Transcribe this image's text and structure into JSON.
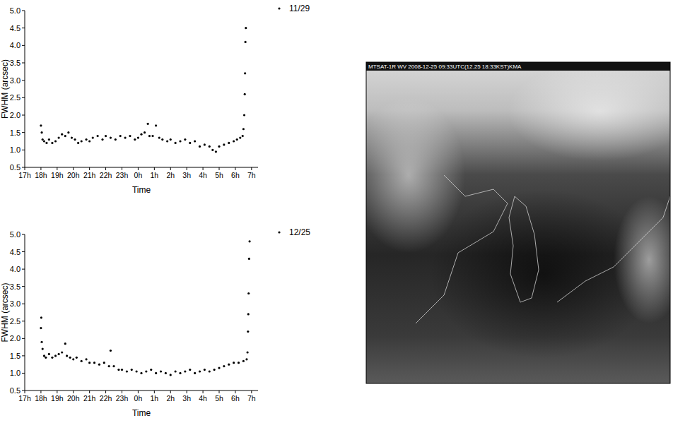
{
  "chart_data": [
    {
      "type": "scatter",
      "x_label": "Time",
      "y_label": "FWHM (arcsec)",
      "marker": "circle",
      "grid": false,
      "legend": "top right",
      "xlim": [
        0,
        14.4
      ],
      "xticks": [
        {
          "value": 0,
          "label": "17h"
        },
        {
          "value": 1,
          "label": "18h"
        },
        {
          "value": 2,
          "label": "19h"
        },
        {
          "value": 3,
          "label": "20h"
        },
        {
          "value": 4,
          "label": "21h"
        },
        {
          "value": 5,
          "label": "22h"
        },
        {
          "value": 6,
          "label": "23h"
        },
        {
          "value": 7,
          "label": "0h"
        },
        {
          "value": 8,
          "label": "1h"
        },
        {
          "value": 9,
          "label": "2h"
        },
        {
          "value": 10,
          "label": "3h"
        },
        {
          "value": 11,
          "label": "4h"
        },
        {
          "value": 12,
          "label": "5h"
        },
        {
          "value": 13,
          "label": "6h"
        },
        {
          "value": 14,
          "label": "7h"
        }
      ],
      "ylim": [
        0.5,
        5.0
      ],
      "yticks": [
        0.5,
        {
          "value": 1,
          "label": "1.0"
        },
        1.5,
        {
          "value": 2,
          "label": "2.0"
        },
        2.5,
        {
          "value": 3,
          "label": "3.0"
        },
        3.5,
        {
          "value": 4,
          "label": "4.0"
        },
        4.5,
        {
          "value": 5,
          "label": "5.0"
        }
      ],
      "x": [
        1.0,
        1.05,
        1.1,
        1.2,
        1.35,
        1.5,
        1.7,
        1.9,
        2.1,
        2.3,
        2.5,
        2.7,
        2.9,
        3.1,
        3.3,
        3.5,
        3.8,
        4.0,
        4.2,
        4.5,
        4.8,
        5.0,
        5.3,
        5.6,
        5.9,
        6.2,
        6.5,
        6.8,
        7.0,
        7.2,
        7.4,
        7.6,
        7.7,
        7.9,
        8.1,
        8.3,
        8.5,
        8.8,
        9.0,
        9.3,
        9.6,
        9.9,
        10.2,
        10.5,
        10.8,
        11.1,
        11.4,
        11.6,
        11.8,
        12.0,
        12.3,
        12.6,
        12.9,
        13.1,
        13.3,
        13.45,
        13.5,
        13.55,
        13.58,
        13.6,
        13.62,
        13.65
      ],
      "series": [
        {
          "name": "11/29",
          "color": "#000000",
          "values": [
            1.7,
            1.5,
            1.3,
            1.25,
            1.2,
            1.3,
            1.2,
            1.25,
            1.35,
            1.45,
            1.4,
            1.5,
            1.35,
            1.3,
            1.2,
            1.25,
            1.3,
            1.25,
            1.35,
            1.4,
            1.3,
            1.4,
            1.35,
            1.3,
            1.4,
            1.35,
            1.4,
            1.3,
            1.35,
            1.45,
            1.5,
            1.75,
            1.4,
            1.4,
            1.7,
            1.35,
            1.3,
            1.25,
            1.3,
            1.2,
            1.25,
            1.3,
            1.2,
            1.25,
            1.1,
            1.15,
            1.1,
            1.0,
            0.95,
            1.1,
            1.15,
            1.2,
            1.25,
            1.3,
            1.35,
            1.4,
            1.6,
            2.0,
            2.6,
            3.2,
            4.1,
            4.5
          ]
        }
      ]
    },
    {
      "type": "scatter",
      "x_label": "Time",
      "y_label": "FWHM (arcsec)",
      "marker": "circle",
      "grid": false,
      "legend": "top right",
      "xlim": [
        0,
        14.4
      ],
      "xticks": [
        {
          "value": 0,
          "label": "17h"
        },
        {
          "value": 1,
          "label": "18h"
        },
        {
          "value": 2,
          "label": "19h"
        },
        {
          "value": 3,
          "label": "20h"
        },
        {
          "value": 4,
          "label": "21h"
        },
        {
          "value": 5,
          "label": "22h"
        },
        {
          "value": 6,
          "label": "23h"
        },
        {
          "value": 7,
          "label": "0h"
        },
        {
          "value": 8,
          "label": "1h"
        },
        {
          "value": 9,
          "label": "2h"
        },
        {
          "value": 10,
          "label": "3h"
        },
        {
          "value": 11,
          "label": "4h"
        },
        {
          "value": 12,
          "label": "5h"
        },
        {
          "value": 13,
          "label": "6h"
        },
        {
          "value": 14,
          "label": "7h"
        }
      ],
      "ylim": [
        0.5,
        5.0
      ],
      "yticks": [
        0.5,
        {
          "value": 1,
          "label": "1.0"
        },
        1.5,
        {
          "value": 2,
          "label": "2.0"
        },
        2.5,
        {
          "value": 3,
          "label": "3.0"
        },
        3.5,
        {
          "value": 4,
          "label": "4.0"
        },
        4.5,
        {
          "value": 5,
          "label": "5.0"
        }
      ],
      "x": [
        1.0,
        1.02,
        1.05,
        1.1,
        1.2,
        1.3,
        1.5,
        1.7,
        1.9,
        2.1,
        2.3,
        2.5,
        2.6,
        2.8,
        3.0,
        3.2,
        3.5,
        3.8,
        4.0,
        4.3,
        4.6,
        4.9,
        5.2,
        5.3,
        5.5,
        5.8,
        6.0,
        6.3,
        6.6,
        6.9,
        7.2,
        7.5,
        7.8,
        8.1,
        8.4,
        8.7,
        9.0,
        9.3,
        9.6,
        9.9,
        10.2,
        10.5,
        10.8,
        11.1,
        11.4,
        11.7,
        12.0,
        12.3,
        12.6,
        12.9,
        13.2,
        13.5,
        13.7,
        13.75,
        13.78,
        13.8,
        13.82,
        13.85,
        13.88
      ],
      "series": [
        {
          "name": "12/25",
          "color": "#000000",
          "values": [
            2.3,
            2.6,
            1.9,
            1.7,
            1.5,
            1.45,
            1.55,
            1.45,
            1.5,
            1.55,
            1.6,
            1.85,
            1.5,
            1.45,
            1.4,
            1.45,
            1.35,
            1.4,
            1.3,
            1.3,
            1.25,
            1.3,
            1.2,
            1.65,
            1.2,
            1.1,
            1.1,
            1.05,
            1.1,
            1.05,
            1.0,
            1.05,
            1.1,
            1.0,
            1.05,
            1.0,
            0.95,
            1.05,
            1.0,
            1.05,
            1.1,
            1.0,
            1.05,
            1.1,
            1.05,
            1.1,
            1.15,
            1.2,
            1.25,
            1.3,
            1.3,
            1.35,
            1.4,
            1.6,
            2.2,
            2.7,
            3.3,
            4.3,
            4.8
          ]
        }
      ]
    }
  ],
  "image": {
    "header": "MTSAT-1R WV 2008-12-25 09:33UTC(12.25 18:33KST)KMA"
  }
}
